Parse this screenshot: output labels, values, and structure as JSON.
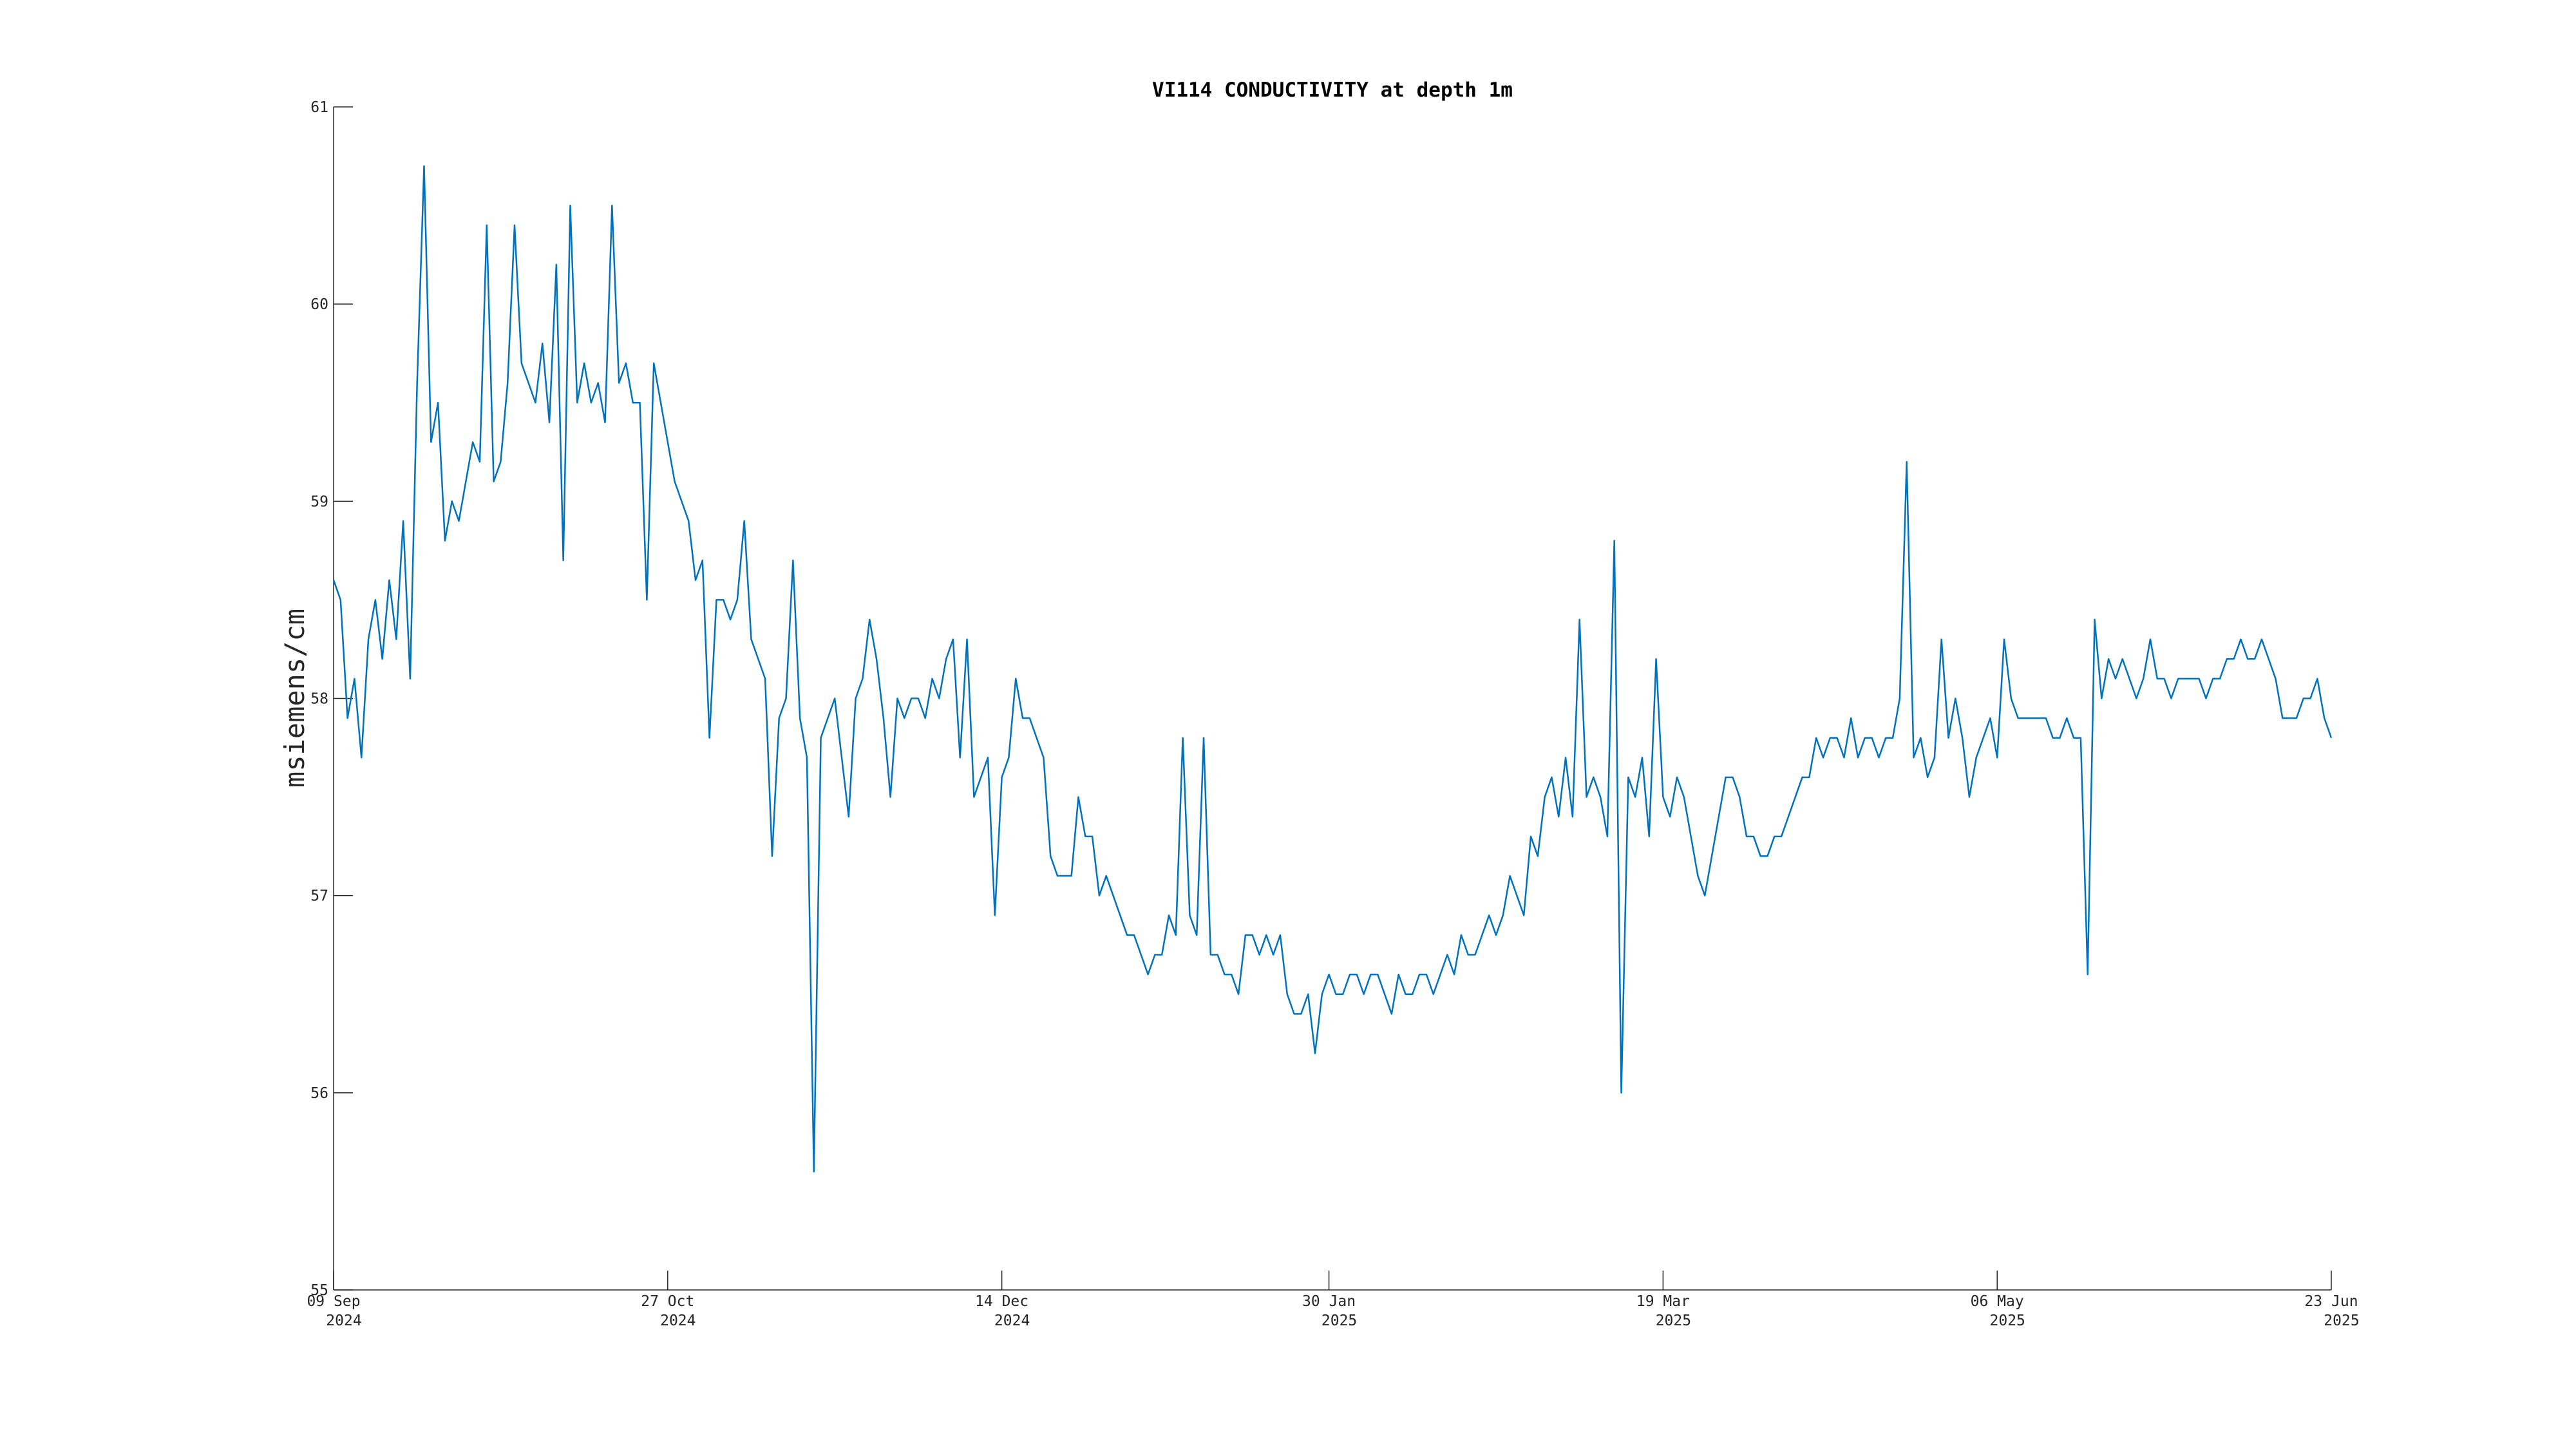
{
  "chart_data": {
    "type": "line",
    "title": "VI114 CONDUCTIVITY at depth 1m",
    "y_label": "msiemens/cm",
    "xlim": [
      "2024-09-09",
      "2025-06-23"
    ],
    "xticks": [
      {
        "value": "2024-09-09",
        "label": [
          "09 Sep",
          "2024"
        ]
      },
      {
        "value": "2024-10-27",
        "label": [
          "27 Oct",
          "2024"
        ]
      },
      {
        "value": "2024-12-14",
        "label": [
          "14 Dec",
          "2024"
        ]
      },
      {
        "value": "2025-01-30",
        "label": [
          "30 Jan",
          "2025"
        ]
      },
      {
        "value": "2025-03-19",
        "label": [
          "19 Mar",
          "2025"
        ]
      },
      {
        "value": "2025-05-06",
        "label": [
          "06 May",
          "2025"
        ]
      },
      {
        "value": "2025-06-23",
        "label": [
          "23 Jun",
          "2025"
        ]
      }
    ],
    "ylim": [
      55,
      61
    ],
    "yticks": [
      55,
      56,
      57,
      58,
      59,
      60,
      61
    ],
    "series": [
      {
        "color": "#0072bd",
        "x": [
          "2024-09-09",
          "2024-09-10",
          "2024-09-11",
          "2024-09-12",
          "2024-09-13",
          "2024-09-14",
          "2024-09-15",
          "2024-09-16",
          "2024-09-17",
          "2024-09-18",
          "2024-09-19",
          "2024-09-20",
          "2024-09-21",
          "2024-09-22",
          "2024-09-23",
          "2024-09-24",
          "2024-09-25",
          "2024-09-26",
          "2024-09-27",
          "2024-09-28",
          "2024-09-29",
          "2024-09-30",
          "2024-10-01",
          "2024-10-02",
          "2024-10-03",
          "2024-10-04",
          "2024-10-05",
          "2024-10-06",
          "2024-10-07",
          "2024-10-08",
          "2024-10-09",
          "2024-10-10",
          "2024-10-11",
          "2024-10-12",
          "2024-10-13",
          "2024-10-14",
          "2024-10-15",
          "2024-10-16",
          "2024-10-17",
          "2024-10-18",
          "2024-10-19",
          "2024-10-20",
          "2024-10-21",
          "2024-10-22",
          "2024-10-23",
          "2024-10-24",
          "2024-10-25",
          "2024-10-26",
          "2024-10-27",
          "2024-10-28",
          "2024-10-29",
          "2024-10-30",
          "2024-10-31",
          "2024-11-01",
          "2024-11-02",
          "2024-11-03",
          "2024-11-04",
          "2024-11-05",
          "2024-11-06",
          "2024-11-07",
          "2024-11-08",
          "2024-11-09",
          "2024-11-10",
          "2024-11-11",
          "2024-11-12",
          "2024-11-13",
          "2024-11-14",
          "2024-11-15",
          "2024-11-16",
          "2024-11-17",
          "2024-11-18",
          "2024-11-19",
          "2024-11-20",
          "2024-11-21",
          "2024-11-22",
          "2024-11-23",
          "2024-11-24",
          "2024-11-25",
          "2024-11-26",
          "2024-11-27",
          "2024-11-28",
          "2024-11-29",
          "2024-11-30",
          "2024-12-01",
          "2024-12-02",
          "2024-12-03",
          "2024-12-04",
          "2024-12-05",
          "2024-12-06",
          "2024-12-07",
          "2024-12-08",
          "2024-12-09",
          "2024-12-10",
          "2024-12-11",
          "2024-12-12",
          "2024-12-13",
          "2024-12-14",
          "2024-12-15",
          "2024-12-16",
          "2024-12-17",
          "2024-12-18",
          "2024-12-19",
          "2024-12-20",
          "2024-12-21",
          "2024-12-22",
          "2024-12-23",
          "2024-12-24",
          "2024-12-25",
          "2024-12-26",
          "2024-12-27",
          "2024-12-28",
          "2024-12-29",
          "2024-12-30",
          "2024-12-31",
          "2025-01-01",
          "2025-01-02",
          "2025-01-03",
          "2025-01-04",
          "2025-01-05",
          "2025-01-06",
          "2025-01-07",
          "2025-01-08",
          "2025-01-09",
          "2025-01-10",
          "2025-01-11",
          "2025-01-12",
          "2025-01-13",
          "2025-01-14",
          "2025-01-15",
          "2025-01-16",
          "2025-01-17",
          "2025-01-18",
          "2025-01-19",
          "2025-01-20",
          "2025-01-21",
          "2025-01-22",
          "2025-01-23",
          "2025-01-24",
          "2025-01-25",
          "2025-01-26",
          "2025-01-27",
          "2025-01-28",
          "2025-01-29",
          "2025-01-30",
          "2025-01-31",
          "2025-02-01",
          "2025-02-02",
          "2025-02-03",
          "2025-02-04",
          "2025-02-05",
          "2025-02-06",
          "2025-02-07",
          "2025-02-08",
          "2025-02-09",
          "2025-02-10",
          "2025-02-11",
          "2025-02-12",
          "2025-02-13",
          "2025-02-14",
          "2025-02-15",
          "2025-02-16",
          "2025-02-17",
          "2025-02-18",
          "2025-02-19",
          "2025-02-20",
          "2025-02-21",
          "2025-02-22",
          "2025-02-23",
          "2025-02-24",
          "2025-02-25",
          "2025-02-26",
          "2025-02-27",
          "2025-02-28",
          "2025-03-01",
          "2025-03-02",
          "2025-03-03",
          "2025-03-04",
          "2025-03-05",
          "2025-03-06",
          "2025-03-07",
          "2025-03-08",
          "2025-03-09",
          "2025-03-10",
          "2025-03-11",
          "2025-03-12",
          "2025-03-13",
          "2025-03-14",
          "2025-03-15",
          "2025-03-16",
          "2025-03-17",
          "2025-03-18",
          "2025-03-19",
          "2025-03-20",
          "2025-03-21",
          "2025-03-22",
          "2025-03-23",
          "2025-03-24",
          "2025-03-25",
          "2025-03-26",
          "2025-03-27",
          "2025-03-28",
          "2025-03-29",
          "2025-03-30",
          "2025-03-31",
          "2025-04-01",
          "2025-04-02",
          "2025-04-03",
          "2025-04-04",
          "2025-04-05",
          "2025-04-06",
          "2025-04-07",
          "2025-04-08",
          "2025-04-09",
          "2025-04-10",
          "2025-04-11",
          "2025-04-12",
          "2025-04-13",
          "2025-04-14",
          "2025-04-15",
          "2025-04-16",
          "2025-04-17",
          "2025-04-18",
          "2025-04-19",
          "2025-04-20",
          "2025-04-21",
          "2025-04-22",
          "2025-04-23",
          "2025-04-24",
          "2025-04-25",
          "2025-04-26",
          "2025-04-27",
          "2025-04-28",
          "2025-04-29",
          "2025-04-30",
          "2025-05-01",
          "2025-05-02",
          "2025-05-03",
          "2025-05-04",
          "2025-05-05",
          "2025-05-06",
          "2025-05-07",
          "2025-05-08",
          "2025-05-09",
          "2025-05-10",
          "2025-05-11",
          "2025-05-12",
          "2025-05-13",
          "2025-05-14",
          "2025-05-15",
          "2025-05-16",
          "2025-05-17",
          "2025-05-18",
          "2025-05-19",
          "2025-05-20",
          "2025-05-21",
          "2025-05-22",
          "2025-05-23",
          "2025-05-24",
          "2025-05-25",
          "2025-05-26",
          "2025-05-27",
          "2025-05-28",
          "2025-05-29",
          "2025-05-30",
          "2025-05-31",
          "2025-06-01",
          "2025-06-02",
          "2025-06-03",
          "2025-06-04",
          "2025-06-05",
          "2025-06-06",
          "2025-06-07",
          "2025-06-08",
          "2025-06-09",
          "2025-06-10",
          "2025-06-11",
          "2025-06-12",
          "2025-06-13",
          "2025-06-14",
          "2025-06-15",
          "2025-06-16",
          "2025-06-17",
          "2025-06-18",
          "2025-06-19",
          "2025-06-20",
          "2025-06-21",
          "2025-06-22",
          "2025-06-23"
        ],
        "values": [
          58.6,
          58.5,
          57.9,
          58.1,
          57.7,
          58.3,
          58.5,
          58.2,
          58.6,
          58.3,
          58.9,
          58.1,
          59.6,
          60.7,
          59.3,
          59.5,
          58.8,
          59.0,
          58.9,
          59.1,
          59.3,
          59.2,
          60.4,
          59.1,
          59.2,
          59.6,
          60.4,
          59.7,
          59.6,
          59.5,
          59.8,
          59.4,
          60.2,
          58.7,
          60.5,
          59.5,
          59.7,
          59.5,
          59.6,
          59.4,
          60.5,
          59.6,
          59.7,
          59.5,
          59.5,
          58.5,
          59.7,
          59.5,
          59.3,
          59.1,
          59.0,
          58.9,
          58.6,
          58.7,
          57.8,
          58.5,
          58.5,
          58.4,
          58.5,
          58.9,
          58.3,
          58.2,
          58.1,
          57.2,
          57.9,
          58.0,
          58.7,
          57.9,
          57.7,
          55.6,
          57.8,
          57.9,
          58.0,
          57.7,
          57.4,
          58.0,
          58.1,
          58.4,
          58.2,
          57.9,
          57.5,
          58.0,
          57.9,
          58.0,
          58.0,
          57.9,
          58.1,
          58.0,
          58.2,
          58.3,
          57.7,
          58.3,
          57.5,
          57.6,
          57.7,
          56.9,
          57.6,
          57.7,
          58.1,
          57.9,
          57.9,
          57.8,
          57.7,
          57.2,
          57.1,
          57.1,
          57.1,
          57.5,
          57.3,
          57.3,
          57.0,
          57.1,
          57.0,
          56.9,
          56.8,
          56.8,
          56.7,
          56.6,
          56.7,
          56.7,
          56.9,
          56.8,
          57.8,
          56.9,
          56.8,
          57.8,
          56.7,
          56.7,
          56.6,
          56.6,
          56.5,
          56.8,
          56.8,
          56.7,
          56.8,
          56.7,
          56.8,
          56.5,
          56.4,
          56.4,
          56.5,
          56.2,
          56.5,
          56.6,
          56.5,
          56.5,
          56.6,
          56.6,
          56.5,
          56.6,
          56.6,
          56.5,
          56.4,
          56.6,
          56.5,
          56.5,
          56.6,
          56.6,
          56.5,
          56.6,
          56.7,
          56.6,
          56.8,
          56.7,
          56.7,
          56.8,
          56.9,
          56.8,
          56.9,
          57.1,
          57.0,
          56.9,
          57.3,
          57.2,
          57.5,
          57.6,
          57.4,
          57.7,
          57.4,
          58.4,
          57.5,
          57.6,
          57.5,
          57.3,
          58.8,
          56.0,
          57.6,
          57.5,
          57.7,
          57.3,
          58.2,
          57.5,
          57.4,
          57.6,
          57.5,
          57.3,
          57.1,
          57.0,
          57.2,
          57.4,
          57.6,
          57.6,
          57.5,
          57.3,
          57.3,
          57.2,
          57.2,
          57.3,
          57.3,
          57.4,
          57.5,
          57.6,
          57.6,
          57.8,
          57.7,
          57.8,
          57.8,
          57.7,
          57.9,
          57.7,
          57.8,
          57.8,
          57.7,
          57.8,
          57.8,
          58.0,
          59.2,
          57.7,
          57.8,
          57.6,
          57.7,
          58.3,
          57.8,
          58.0,
          57.8,
          57.5,
          57.7,
          57.8,
          57.9,
          57.7,
          58.3,
          58.0,
          57.9,
          57.9,
          57.9,
          57.9,
          57.9,
          57.8,
          57.8,
          57.9,
          57.8,
          57.8,
          56.6,
          58.4,
          58.0,
          58.2,
          58.1,
          58.2,
          58.1,
          58.0,
          58.1,
          58.3,
          58.1,
          58.1,
          58.0,
          58.1,
          58.1,
          58.1,
          58.1,
          58.0,
          58.1,
          58.1,
          58.2,
          58.2,
          58.3,
          58.2,
          58.2,
          58.3,
          58.2,
          58.1,
          57.9,
          57.9,
          57.9,
          58.0,
          58.0,
          58.1,
          57.9,
          57.8
        ]
      }
    ]
  }
}
